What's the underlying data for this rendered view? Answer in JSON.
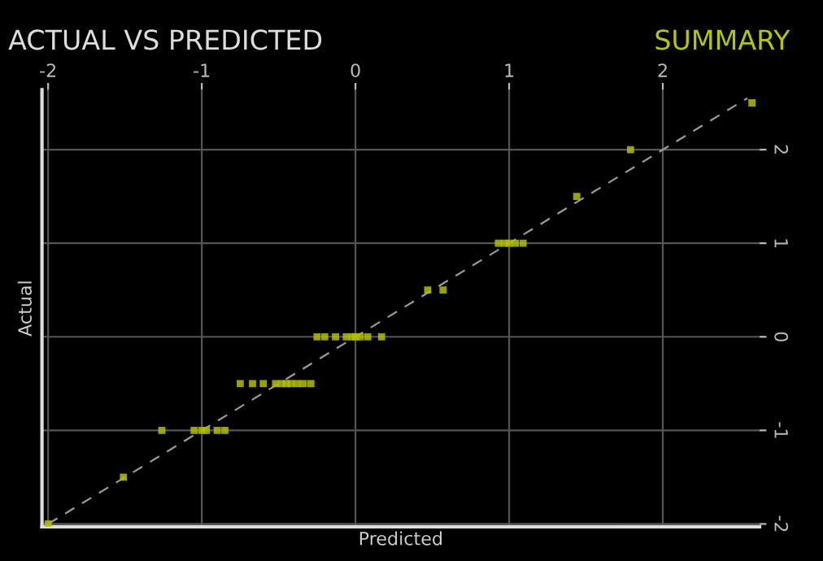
{
  "chart_data": {
    "type": "scatter",
    "title": "ACTUAL VS PREDICTED",
    "xlabel": "Predicted",
    "ylabel": "Actual",
    "annotations": [
      "SUMMARY"
    ],
    "series": [
      {
        "color": "#b4c000",
        "marker": "square",
        "x": [
          -2.0,
          -1.51,
          -1.26,
          -1.05,
          -1.0,
          -0.97,
          -0.9,
          -0.85,
          -0.75,
          -0.67,
          -0.6,
          -0.52,
          -0.48,
          -0.45,
          -0.42,
          -0.38,
          -0.34,
          -0.29,
          -0.25,
          -0.2,
          -0.13,
          -0.06,
          -0.02,
          0.0,
          0.03,
          0.08,
          0.17,
          0.47,
          0.57,
          0.93,
          0.97,
          1.0,
          1.04,
          1.09,
          1.44,
          1.79,
          2.58
        ],
        "values": [
          -2.0,
          -1.5,
          -1.0,
          -1.0,
          -1.0,
          -1.0,
          -1.0,
          -1.0,
          -0.5,
          -0.5,
          -0.5,
          -0.5,
          -0.5,
          -0.5,
          -0.5,
          -0.5,
          -0.5,
          -0.5,
          0.0,
          0.0,
          0.0,
          0.0,
          0.0,
          0.0,
          0.0,
          0.0,
          0.0,
          0.5,
          0.5,
          1.0,
          1.0,
          1.0,
          1.0,
          1.0,
          1.5,
          2.0,
          2.5
        ]
      },
      {
        "type": "line",
        "color": "#9a9a9a",
        "line_style": "dashed",
        "x": [
          -2.0,
          2.55
        ],
        "values": [
          -2.0,
          2.55
        ]
      }
    ],
    "xlim": [
      -2.04,
      2.63
    ],
    "ylim": [
      -2.03,
      2.64
    ],
    "xticks": [
      -2,
      -1,
      0,
      1,
      2
    ],
    "yticks": [
      -2,
      -1,
      0,
      1,
      2
    ],
    "grid": true,
    "legend": false
  }
}
